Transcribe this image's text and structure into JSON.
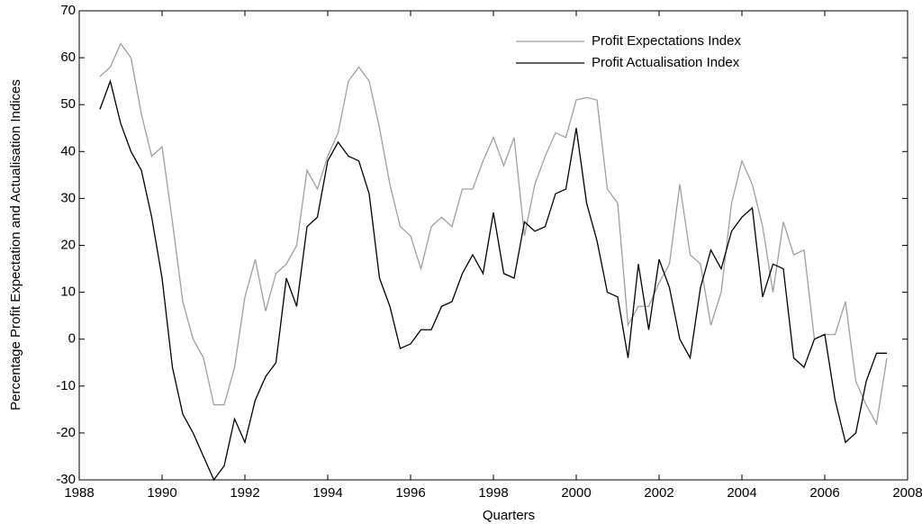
{
  "chart_data": {
    "type": "line",
    "xlabel": "Quarters",
    "ylabel": "Percentage Profit Expectation and Actualisation Indices",
    "x": [
      1988.5,
      1988.75,
      1989,
      1989.25,
      1989.5,
      1989.75,
      1990,
      1990.25,
      1990.5,
      1990.75,
      1991,
      1991.25,
      1991.5,
      1991.75,
      1992,
      1992.25,
      1992.5,
      1992.75,
      1993,
      1993.25,
      1993.5,
      1993.75,
      1994,
      1994.25,
      1994.5,
      1994.75,
      1995,
      1995.25,
      1995.5,
      1995.75,
      1996,
      1996.25,
      1996.5,
      1996.75,
      1997,
      1997.25,
      1997.5,
      1997.75,
      1998,
      1998.25,
      1998.5,
      1998.75,
      1999,
      1999.25,
      1999.5,
      1999.75,
      2000,
      2000.25,
      2000.5,
      2000.75,
      2001,
      2001.25,
      2001.5,
      2001.75,
      2002,
      2002.25,
      2002.5,
      2002.75,
      2003,
      2003.25,
      2003.5,
      2003.75,
      2004,
      2004.25,
      2004.5,
      2004.75,
      2005,
      2005.25,
      2005.5,
      2005.75,
      2006,
      2006.25,
      2006.5,
      2006.75,
      2007,
      2007.25,
      2007.5
    ],
    "series": [
      {
        "name": "Profit Expectations Index",
        "color": "#a0a0a0",
        "values": [
          56,
          58,
          63,
          60,
          48,
          39,
          41,
          25,
          8,
          0,
          -4,
          -14,
          -14,
          -6,
          9,
          17,
          6,
          14,
          16,
          20,
          36,
          32,
          39,
          44,
          55,
          58,
          55,
          45,
          33,
          24,
          22,
          15,
          24,
          26,
          24,
          32,
          32,
          38,
          43,
          37,
          43,
          22,
          33,
          39,
          44,
          43,
          51,
          51.5,
          51,
          32,
          29,
          3,
          7,
          7,
          12,
          16,
          33,
          18,
          16,
          3,
          10,
          29,
          38,
          33,
          24,
          10,
          25,
          18,
          19,
          0,
          1,
          1,
          8,
          -9,
          -14,
          -18,
          -4
        ]
      },
      {
        "name": "Profit Actualisation Index",
        "color": "#000000",
        "values": [
          49,
          55,
          46,
          40,
          36,
          26,
          13,
          -6,
          -16,
          -20,
          -25,
          -30,
          -27,
          -17,
          -22,
          -13,
          -8,
          -5,
          13,
          7,
          24,
          26,
          38,
          42,
          39,
          38,
          31,
          13,
          7,
          -2,
          -1,
          2,
          2,
          7,
          8,
          14,
          18,
          14,
          27,
          14,
          13,
          25,
          23,
          24,
          31,
          32,
          45,
          29,
          21,
          10,
          9,
          -4,
          16,
          2,
          17,
          11,
          0,
          -4,
          11,
          19,
          15,
          23,
          26,
          28,
          9,
          16,
          15,
          -4,
          -6,
          0,
          1,
          -13,
          -22,
          -20,
          -9,
          -3,
          -3
        ]
      }
    ],
    "xlim": [
      1988,
      2008
    ],
    "xticks": [
      1988,
      1990,
      1992,
      1994,
      1996,
      1998,
      2000,
      2002,
      2004,
      2006,
      2008
    ],
    "ylim": [
      -30,
      70
    ],
    "yticks": [
      -30,
      -20,
      -10,
      0,
      10,
      20,
      30,
      40,
      50,
      60,
      70
    ],
    "grid": false,
    "legend": "upper right"
  }
}
